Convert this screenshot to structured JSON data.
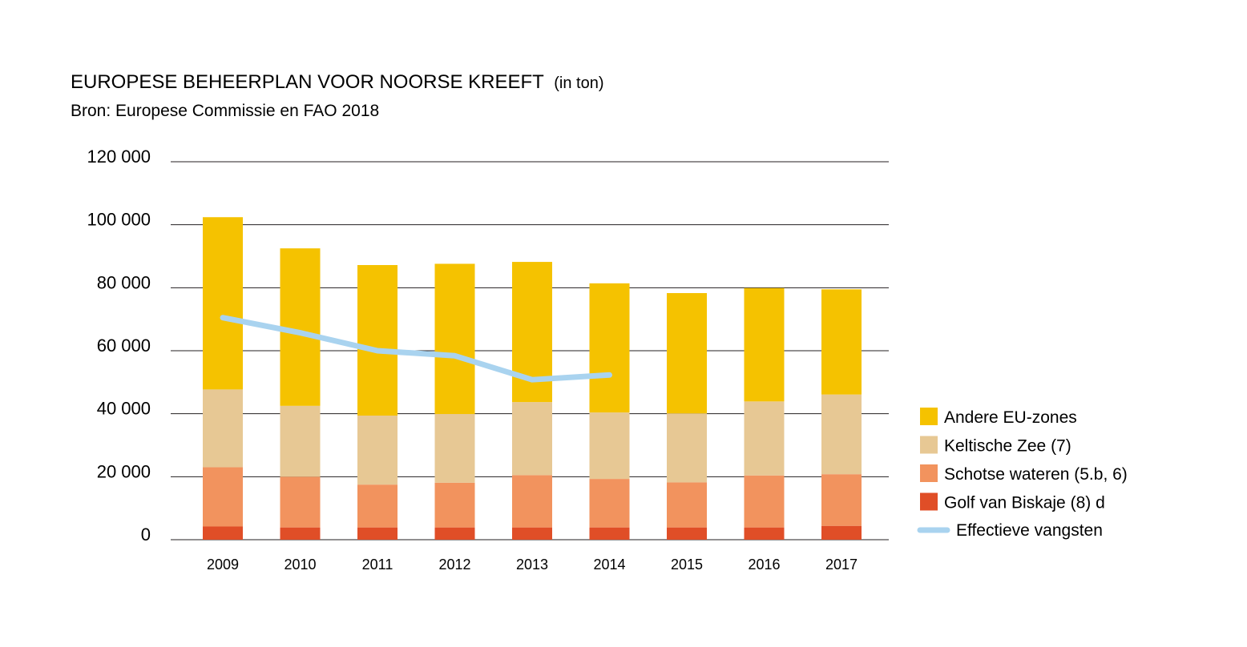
{
  "chart_data": {
    "type": "bar",
    "stacked": true,
    "title": "EUROPESE BEHEERPLAN VOOR NOORSE KREEFT",
    "title_unit": "(in ton)",
    "subtitle": "Bron: Europese Commissie en FAO 2018",
    "categories": [
      "2009",
      "2010",
      "2011",
      "2012",
      "2013",
      "2014",
      "2015",
      "2016",
      "2017"
    ],
    "ylim": [
      0,
      120000
    ],
    "yticks": [
      0,
      20000,
      40000,
      60000,
      80000,
      100000,
      120000
    ],
    "ytick_labels": [
      "0",
      "20 000",
      "40 000",
      "60 000",
      "80 000",
      "100 000",
      "120 000"
    ],
    "grid": true,
    "legend_position": "right",
    "series": [
      {
        "name": "Golf van Biskaje (8) d",
        "color": "#e04e27",
        "values": [
          4200,
          3900,
          3900,
          3900,
          3900,
          3900,
          3900,
          3900,
          4400
        ]
      },
      {
        "name": "Schotse wateren (5.b, 6)",
        "color": "#f2935e",
        "values": [
          18800,
          16100,
          13600,
          14200,
          16600,
          15400,
          14300,
          16500,
          16400
        ]
      },
      {
        "name": "Keltische Zee (7)",
        "color": "#e7c894",
        "values": [
          24700,
          22500,
          21900,
          21800,
          23200,
          21100,
          21900,
          23500,
          25300
        ]
      },
      {
        "name": "Andere EU-zones",
        "color": "#f5c200",
        "values": [
          54700,
          50000,
          47800,
          47700,
          44500,
          41000,
          38200,
          36000,
          33400
        ]
      }
    ],
    "line": {
      "name": "Effectieve vangsten",
      "color": "#a9d3ef",
      "values": [
        70500,
        65700,
        60000,
        58400,
        50800,
        52300
      ]
    },
    "legend_order": [
      "Andere EU-zones",
      "Keltische Zee (7)",
      "Schotse wateren (5.b, 6)",
      "Golf van Biskaje (8) d",
      "Effectieve vangsten"
    ]
  }
}
